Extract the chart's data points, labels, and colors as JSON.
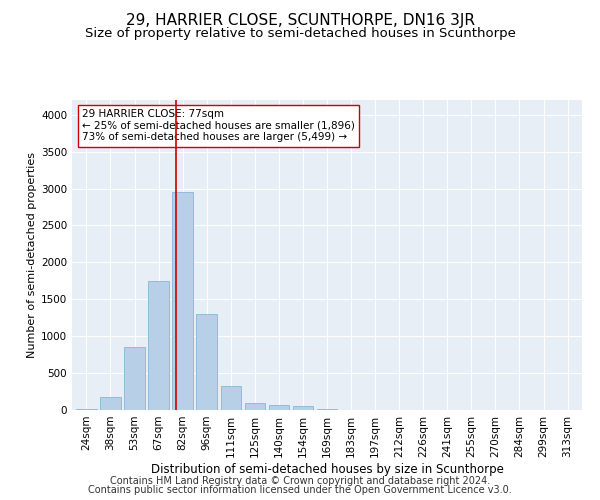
{
  "title": "29, HARRIER CLOSE, SCUNTHORPE, DN16 3JR",
  "subtitle": "Size of property relative to semi-detached houses in Scunthorpe",
  "xlabel": "Distribution of semi-detached houses by size in Scunthorpe",
  "ylabel": "Number of semi-detached properties",
  "categories": [
    "24sqm",
    "38sqm",
    "53sqm",
    "67sqm",
    "82sqm",
    "96sqm",
    "111sqm",
    "125sqm",
    "140sqm",
    "154sqm",
    "169sqm",
    "183sqm",
    "197sqm",
    "212sqm",
    "226sqm",
    "241sqm",
    "255sqm",
    "270sqm",
    "284sqm",
    "299sqm",
    "313sqm"
  ],
  "values": [
    10,
    175,
    850,
    1750,
    2950,
    1300,
    325,
    100,
    65,
    50,
    10,
    0,
    0,
    0,
    0,
    0,
    0,
    0,
    0,
    0,
    0
  ],
  "bar_color": "#b8cfe8",
  "bar_edgecolor": "#7aaed4",
  "vline_x_index": 3.72,
  "vline_color": "#cc0000",
  "annotation_text": "29 HARRIER CLOSE: 77sqm\n← 25% of semi-detached houses are smaller (1,896)\n73% of semi-detached houses are larger (5,499) →",
  "annotation_box_facecolor": "#ffffff",
  "annotation_box_edgecolor": "#cc0000",
  "ylim": [
    0,
    4200
  ],
  "yticks": [
    0,
    500,
    1000,
    1500,
    2000,
    2500,
    3000,
    3500,
    4000
  ],
  "bg_color": "#e8eef5",
  "footer_line1": "Contains HM Land Registry data © Crown copyright and database right 2024.",
  "footer_line2": "Contains public sector information licensed under the Open Government Licence v3.0.",
  "title_fontsize": 11,
  "subtitle_fontsize": 9.5,
  "xlabel_fontsize": 8.5,
  "ylabel_fontsize": 8,
  "tick_fontsize": 7.5,
  "annotation_fontsize": 7.5,
  "footer_fontsize": 7
}
